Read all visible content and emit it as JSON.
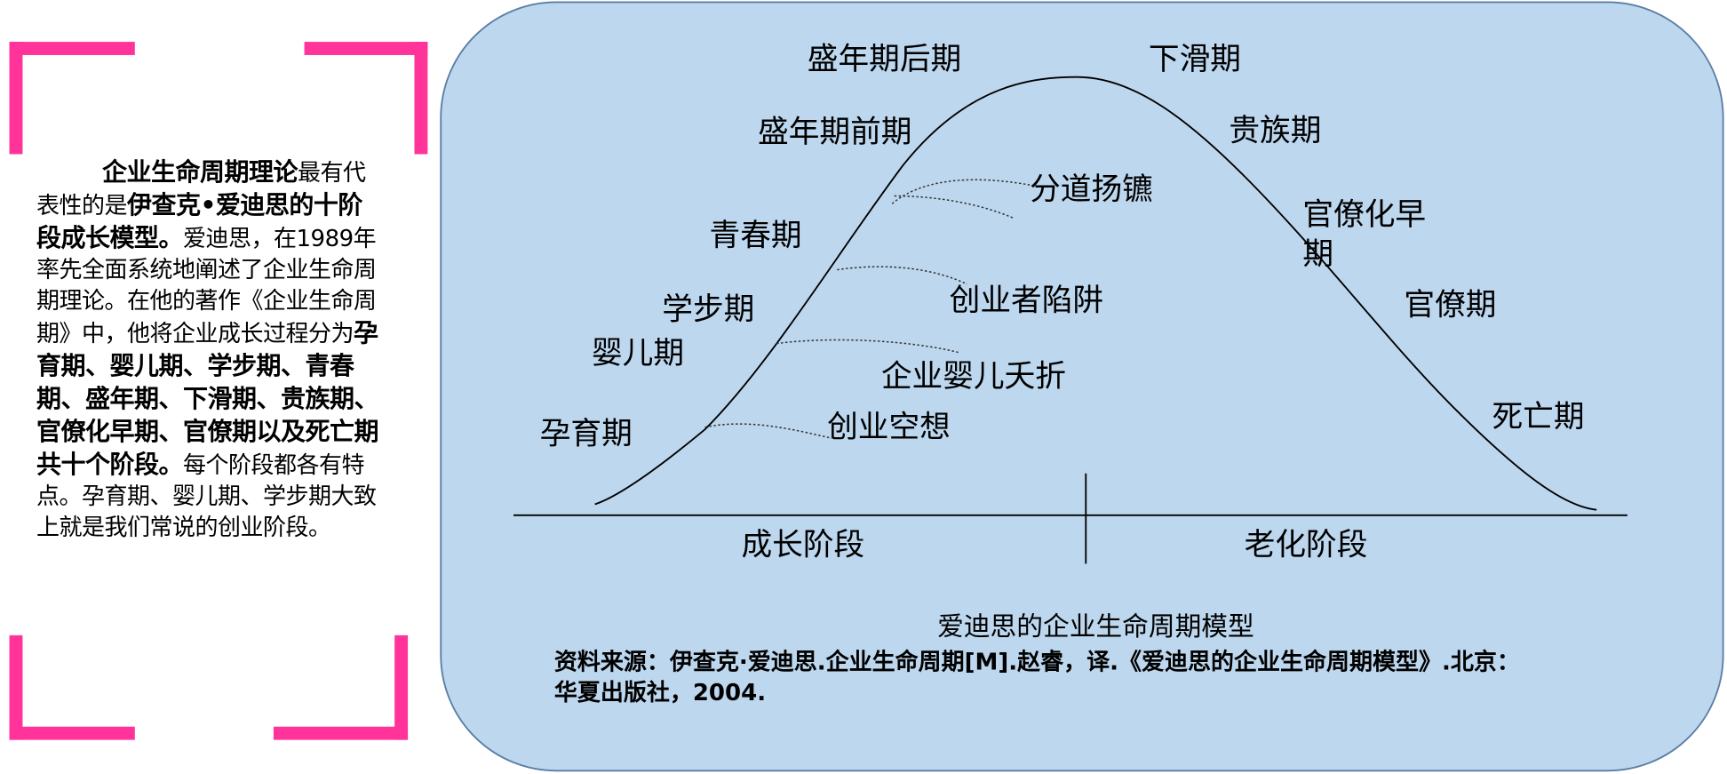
{
  "intro": {
    "runs": [
      {
        "text": "企业生命周期理论",
        "bold": true
      },
      {
        "text": "最有代表性的是",
        "bold": false
      },
      {
        "text": "伊查克•爱迪思的十阶段成长模型。",
        "bold": true
      },
      {
        "text": "爱迪思，在1989年率先全面系统地阐述了企业生命周期理论。在他的著作《企业生命周期》中，他将企业成长过程分为",
        "bold": false
      },
      {
        "text": "孕育期、婴儿期、学步期、青春期、盛年期、下滑期、贵族期、官僚化早期、官僚期以及死亡期共十个阶段。",
        "bold": true
      },
      {
        "text": "每个阶段都各有特点。孕育期、婴儿期、学步期大致上就是我们常说的创业阶段。",
        "bold": false
      }
    ]
  },
  "diagram": {
    "phases": [
      {
        "lines": [
          "孕育期"
        ]
      },
      {
        "lines": [
          "婴儿期"
        ]
      },
      {
        "lines": [
          "学步期"
        ]
      },
      {
        "lines": [
          "青春期"
        ]
      },
      {
        "lines": [
          "盛年期前期"
        ]
      },
      {
        "lines": [
          "盛年期后期"
        ]
      },
      {
        "lines": [
          "下滑期"
        ]
      },
      {
        "lines": [
          "贵族期"
        ]
      },
      {
        "lines": [
          "官僚化早",
          "期"
        ]
      },
      {
        "lines": [
          "官僚期"
        ]
      },
      {
        "lines": [
          "死亡期"
        ]
      }
    ],
    "traps": [
      "创业空想",
      "企业婴儿夭折",
      "创业者陷阱",
      "分道扬镳"
    ],
    "stages": [
      "成长阶段",
      "老化阶段"
    ],
    "caption": "爱迪思的企业生命周期模型",
    "source": [
      "资料来源：伊查克·爱迪思.企业生命周期[M].赵睿，译.《爱迪思的企业生命周期模型》.北京：",
      "华夏出版社，2004."
    ]
  }
}
